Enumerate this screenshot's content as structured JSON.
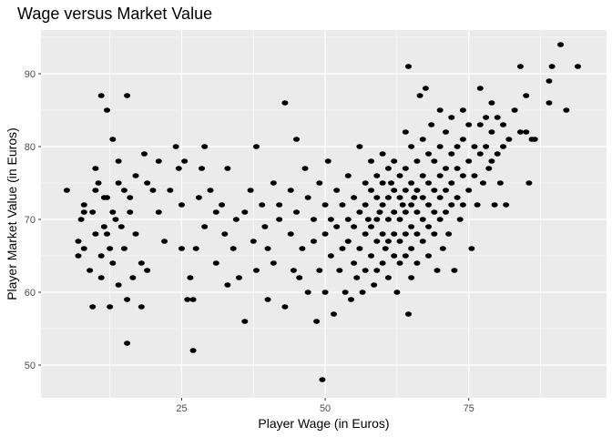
{
  "chart_data": {
    "type": "scatter",
    "title": "Wage versus Market Value",
    "xlabel": "Player Wage (in Euros)",
    "ylabel": "Player Market Value (in Euros)",
    "xlim": [
      0.5,
      99
    ],
    "ylim": [
      45.5,
      96
    ],
    "x_ticks": [
      25,
      50,
      75
    ],
    "y_ticks": [
      50,
      60,
      70,
      80,
      90
    ],
    "grid": true,
    "panel_background": "#EBEBEB",
    "grid_color": "#FFFFFF",
    "point_color": "#000000",
    "points": [
      [
        5,
        74
      ],
      [
        7,
        65
      ],
      [
        7,
        67
      ],
      [
        7.5,
        70
      ],
      [
        8,
        72
      ],
      [
        8,
        66
      ],
      [
        8,
        71
      ],
      [
        9,
        63
      ],
      [
        9.5,
        58
      ],
      [
        9.5,
        71
      ],
      [
        10,
        74
      ],
      [
        10,
        68
      ],
      [
        10,
        77
      ],
      [
        10.5,
        75
      ],
      [
        11,
        87
      ],
      [
        11,
        65
      ],
      [
        11,
        62
      ],
      [
        11.5,
        69
      ],
      [
        11.5,
        73
      ],
      [
        12,
        85
      ],
      [
        12,
        73
      ],
      [
        12,
        68
      ],
      [
        12.5,
        58
      ],
      [
        12.5,
        66
      ],
      [
        13,
        81
      ],
      [
        13,
        71
      ],
      [
        13,
        64
      ],
      [
        13.5,
        70
      ],
      [
        14,
        78
      ],
      [
        14,
        75
      ],
      [
        14,
        61
      ],
      [
        14.5,
        69
      ],
      [
        15,
        74
      ],
      [
        15,
        66
      ],
      [
        15.5,
        87
      ],
      [
        15.5,
        53
      ],
      [
        15.5,
        59
      ],
      [
        16,
        73
      ],
      [
        16,
        71
      ],
      [
        16.5,
        62
      ],
      [
        17,
        76
      ],
      [
        17,
        68
      ],
      [
        18,
        58
      ],
      [
        18,
        64
      ],
      [
        18.5,
        79
      ],
      [
        19,
        75
      ],
      [
        19,
        63
      ],
      [
        20,
        74
      ],
      [
        21,
        71
      ],
      [
        21,
        78
      ],
      [
        22,
        67
      ],
      [
        23,
        74
      ],
      [
        24,
        80
      ],
      [
        24.5,
        77
      ],
      [
        25,
        72
      ],
      [
        25,
        66
      ],
      [
        25.5,
        78
      ],
      [
        26,
        59
      ],
      [
        26.5,
        62
      ],
      [
        27,
        52
      ],
      [
        27,
        59
      ],
      [
        27.5,
        66
      ],
      [
        28,
        73
      ],
      [
        28.5,
        77
      ],
      [
        29,
        80
      ],
      [
        29,
        69
      ],
      [
        30,
        74
      ],
      [
        31,
        71
      ],
      [
        31,
        64
      ],
      [
        32,
        72
      ],
      [
        32.5,
        68
      ],
      [
        33,
        77
      ],
      [
        33,
        61
      ],
      [
        34,
        66
      ],
      [
        34.5,
        70
      ],
      [
        35,
        62
      ],
      [
        36,
        56
      ],
      [
        36,
        71
      ],
      [
        37,
        74
      ],
      [
        37.5,
        67
      ],
      [
        38,
        80
      ],
      [
        38,
        63
      ],
      [
        39,
        72
      ],
      [
        39.5,
        69
      ],
      [
        40,
        59
      ],
      [
        40,
        66
      ],
      [
        41,
        75
      ],
      [
        41,
        64
      ],
      [
        42,
        72
      ],
      [
        42,
        70
      ],
      [
        43,
        86
      ],
      [
        43,
        58
      ],
      [
        44,
        74
      ],
      [
        44,
        68
      ],
      [
        44.5,
        63
      ],
      [
        45,
        81
      ],
      [
        45,
        71
      ],
      [
        45.5,
        62
      ],
      [
        46,
        66
      ],
      [
        46.5,
        77
      ],
      [
        47,
        73
      ],
      [
        47,
        60
      ],
      [
        48,
        70
      ],
      [
        48,
        67
      ],
      [
        48.5,
        56
      ],
      [
        49,
        75
      ],
      [
        49,
        63
      ],
      [
        49.5,
        48
      ],
      [
        50,
        72
      ],
      [
        50,
        68
      ],
      [
        50,
        60
      ],
      [
        50.5,
        78
      ],
      [
        51,
        65
      ],
      [
        51,
        70
      ],
      [
        51.5,
        57
      ],
      [
        52,
        74
      ],
      [
        52,
        69
      ],
      [
        52.5,
        63
      ],
      [
        53,
        72
      ],
      [
        53,
        66
      ],
      [
        53.5,
        60
      ],
      [
        54,
        76
      ],
      [
        54,
        70
      ],
      [
        54,
        67
      ],
      [
        54.5,
        59
      ],
      [
        55,
        73
      ],
      [
        55,
        69
      ],
      [
        55,
        64
      ],
      [
        55.5,
        62
      ],
      [
        56,
        80
      ],
      [
        56,
        71
      ],
      [
        56,
        66
      ],
      [
        56.5,
        60
      ],
      [
        57,
        75
      ],
      [
        57,
        72
      ],
      [
        57,
        68
      ],
      [
        57,
        63
      ],
      [
        57.5,
        70
      ],
      [
        58,
        78
      ],
      [
        58,
        74
      ],
      [
        58,
        69
      ],
      [
        58,
        65
      ],
      [
        58.5,
        61
      ],
      [
        59,
        76
      ],
      [
        59,
        73
      ],
      [
        59,
        70
      ],
      [
        59,
        67
      ],
      [
        59,
        63
      ],
      [
        59.5,
        71
      ],
      [
        60,
        79
      ],
      [
        60,
        75
      ],
      [
        60,
        72
      ],
      [
        60,
        68
      ],
      [
        60,
        64
      ],
      [
        60.5,
        66
      ],
      [
        61,
        77
      ],
      [
        61,
        73
      ],
      [
        61,
        70
      ],
      [
        61,
        67
      ],
      [
        61,
        62
      ],
      [
        61.5,
        75
      ],
      [
        62,
        78
      ],
      [
        62,
        74
      ],
      [
        62,
        71
      ],
      [
        62,
        68
      ],
      [
        62,
        65
      ],
      [
        62.5,
        60
      ],
      [
        63,
        76
      ],
      [
        63,
        73
      ],
      [
        63,
        70
      ],
      [
        63,
        67
      ],
      [
        63,
        64
      ],
      [
        63.5,
        72
      ],
      [
        64,
        82
      ],
      [
        64,
        77
      ],
      [
        64,
        74
      ],
      [
        64,
        71
      ],
      [
        64,
        68
      ],
      [
        64,
        65
      ],
      [
        64.5,
        91
      ],
      [
        64.5,
        57
      ],
      [
        65,
        80
      ],
      [
        65,
        75
      ],
      [
        65,
        72
      ],
      [
        65,
        69
      ],
      [
        65,
        66
      ],
      [
        65,
        62
      ],
      [
        65.5,
        73
      ],
      [
        66,
        78
      ],
      [
        66,
        74
      ],
      [
        66,
        71
      ],
      [
        66,
        68
      ],
      [
        66,
        64
      ],
      [
        66.5,
        87
      ],
      [
        67,
        81
      ],
      [
        67,
        76
      ],
      [
        67,
        73
      ],
      [
        67,
        70
      ],
      [
        67,
        67
      ],
      [
        67.5,
        88
      ],
      [
        68,
        79
      ],
      [
        68,
        75
      ],
      [
        68,
        72
      ],
      [
        68,
        69
      ],
      [
        68,
        65
      ],
      [
        68.5,
        83
      ],
      [
        69,
        78
      ],
      [
        69,
        74
      ],
      [
        69,
        71
      ],
      [
        69,
        68
      ],
      [
        69.5,
        63
      ],
      [
        70,
        85
      ],
      [
        70,
        80
      ],
      [
        70,
        76
      ],
      [
        70,
        73
      ],
      [
        70,
        70
      ],
      [
        70.5,
        66
      ],
      [
        71,
        82
      ],
      [
        71,
        77
      ],
      [
        71,
        74
      ],
      [
        71,
        71
      ],
      [
        71.5,
        68
      ],
      [
        72,
        84
      ],
      [
        72,
        79
      ],
      [
        72,
        75
      ],
      [
        72,
        72
      ],
      [
        72.5,
        63
      ],
      [
        73,
        80
      ],
      [
        73,
        77
      ],
      [
        73,
        73
      ],
      [
        73.5,
        70
      ],
      [
        74,
        85
      ],
      [
        74,
        81
      ],
      [
        74,
        76
      ],
      [
        74,
        72
      ],
      [
        75,
        83
      ],
      [
        75,
        78
      ],
      [
        75,
        74
      ],
      [
        75.5,
        66
      ],
      [
        76,
        80
      ],
      [
        76,
        76
      ],
      [
        76.5,
        72
      ],
      [
        77,
        88
      ],
      [
        77,
        83
      ],
      [
        77,
        79
      ],
      [
        77.5,
        75
      ],
      [
        78,
        84
      ],
      [
        78,
        80
      ],
      [
        78.5,
        77
      ],
      [
        79,
        86
      ],
      [
        79,
        82
      ],
      [
        79,
        78
      ],
      [
        79.5,
        72
      ],
      [
        80,
        84
      ],
      [
        80,
        79
      ],
      [
        80.5,
        75
      ],
      [
        81,
        83
      ],
      [
        81,
        80
      ],
      [
        81.5,
        72
      ],
      [
        82,
        81
      ],
      [
        83,
        85
      ],
      [
        84,
        91
      ],
      [
        84,
        82
      ],
      [
        85,
        87
      ],
      [
        85,
        82
      ],
      [
        85.5,
        75
      ],
      [
        86,
        81
      ],
      [
        86.5,
        81
      ],
      [
        89,
        89
      ],
      [
        89,
        86
      ],
      [
        89.5,
        91
      ],
      [
        91,
        94
      ],
      [
        92,
        85
      ],
      [
        94,
        91
      ]
    ]
  }
}
